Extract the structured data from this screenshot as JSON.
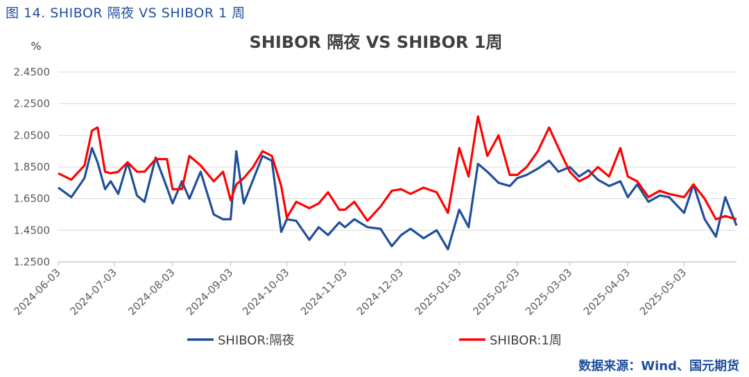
{
  "figure_caption": "图 14. SHIBOR 隔夜 VS SHIBOR 1 周",
  "source_note": "数据来源：Wind、国元期货",
  "colors": {
    "overnight": "#1f4e9c",
    "week": "#ff0000",
    "axis": "#bfbfbf",
    "caption": "#1f4e9c"
  },
  "chart_data": {
    "type": "line",
    "title": "SHIBOR 隔夜 VS SHIBOR 1周",
    "ylabel": "%",
    "xlabel": "",
    "ylim": [
      1.25,
      2.45
    ],
    "yticks": [
      "2.4500",
      "2.2500",
      "2.0500",
      "1.8500",
      "1.6500",
      "1.4500",
      "1.2500"
    ],
    "ytick_values": [
      2.45,
      2.25,
      2.05,
      1.85,
      1.65,
      1.45,
      1.25
    ],
    "xlim": [
      "2024-06-03",
      "2025-05-31"
    ],
    "xticks": [
      "2024-06-03",
      "2024-07-03",
      "2024-08-03",
      "2024-09-03",
      "2024-10-03",
      "2024-11-03",
      "2024-12-03",
      "2025-01-03",
      "2025-02-03",
      "2025-03-03",
      "2025-04-03",
      "2025-05-03"
    ],
    "legend_position": "bottom",
    "grid": "horizontal",
    "series": [
      {
        "name": "SHIBOR:隔夜",
        "color": "#1f4e9c",
        "x": [
          "2024-06-03",
          "2024-06-10",
          "2024-06-17",
          "2024-06-21",
          "2024-06-24",
          "2024-06-28",
          "2024-07-01",
          "2024-07-05",
          "2024-07-10",
          "2024-07-15",
          "2024-07-19",
          "2024-07-25",
          "2024-07-31",
          "2024-08-03",
          "2024-08-08",
          "2024-08-12",
          "2024-08-18",
          "2024-08-25",
          "2024-08-30",
          "2024-09-03",
          "2024-09-06",
          "2024-09-10",
          "2024-09-15",
          "2024-09-20",
          "2024-09-25",
          "2024-09-30",
          "2024-10-03",
          "2024-10-08",
          "2024-10-15",
          "2024-10-20",
          "2024-10-25",
          "2024-10-31",
          "2024-11-03",
          "2024-11-08",
          "2024-11-15",
          "2024-11-22",
          "2024-11-28",
          "2024-12-03",
          "2024-12-08",
          "2024-12-15",
          "2024-12-22",
          "2024-12-28",
          "2025-01-03",
          "2025-01-08",
          "2025-01-13",
          "2025-01-18",
          "2025-01-24",
          "2025-01-30",
          "2025-02-03",
          "2025-02-08",
          "2025-02-14",
          "2025-02-20",
          "2025-02-25",
          "2025-03-03",
          "2025-03-08",
          "2025-03-13",
          "2025-03-18",
          "2025-03-24",
          "2025-03-30",
          "2025-04-03",
          "2025-04-08",
          "2025-04-14",
          "2025-04-20",
          "2025-04-25",
          "2025-05-03",
          "2025-05-08",
          "2025-05-14",
          "2025-05-20",
          "2025-05-25",
          "2025-05-31"
        ],
        "values": [
          1.72,
          1.66,
          1.78,
          1.97,
          1.88,
          1.71,
          1.76,
          1.68,
          1.88,
          1.67,
          1.63,
          1.91,
          1.72,
          1.62,
          1.76,
          1.65,
          1.82,
          1.55,
          1.52,
          1.52,
          1.95,
          1.62,
          1.77,
          1.92,
          1.89,
          1.44,
          1.52,
          1.51,
          1.39,
          1.47,
          1.42,
          1.5,
          1.47,
          1.52,
          1.47,
          1.46,
          1.35,
          1.42,
          1.46,
          1.4,
          1.45,
          1.33,
          1.58,
          1.47,
          1.87,
          1.82,
          1.75,
          1.73,
          1.78,
          1.8,
          1.84,
          1.89,
          1.82,
          1.85,
          1.79,
          1.83,
          1.77,
          1.73,
          1.76,
          1.66,
          1.74,
          1.63,
          1.67,
          1.66,
          1.56,
          1.74,
          1.52,
          1.41,
          1.66,
          1.48
        ]
      },
      {
        "name": "SHIBOR:1周",
        "color": "#ff0000",
        "x": [
          "2024-06-03",
          "2024-06-10",
          "2024-06-17",
          "2024-06-21",
          "2024-06-24",
          "2024-06-28",
          "2024-07-01",
          "2024-07-05",
          "2024-07-10",
          "2024-07-15",
          "2024-07-19",
          "2024-07-25",
          "2024-07-31",
          "2024-08-03",
          "2024-08-08",
          "2024-08-12",
          "2024-08-18",
          "2024-08-25",
          "2024-08-30",
          "2024-09-03",
          "2024-09-06",
          "2024-09-10",
          "2024-09-15",
          "2024-09-20",
          "2024-09-25",
          "2024-09-30",
          "2024-10-03",
          "2024-10-08",
          "2024-10-15",
          "2024-10-20",
          "2024-10-25",
          "2024-10-31",
          "2024-11-03",
          "2024-11-08",
          "2024-11-15",
          "2024-11-22",
          "2024-11-28",
          "2024-12-03",
          "2024-12-08",
          "2024-12-15",
          "2024-12-22",
          "2024-12-28",
          "2025-01-03",
          "2025-01-08",
          "2025-01-13",
          "2025-01-18",
          "2025-01-24",
          "2025-01-30",
          "2025-02-03",
          "2025-02-08",
          "2025-02-14",
          "2025-02-20",
          "2025-02-25",
          "2025-03-03",
          "2025-03-08",
          "2025-03-13",
          "2025-03-18",
          "2025-03-24",
          "2025-03-30",
          "2025-04-03",
          "2025-04-08",
          "2025-04-14",
          "2025-04-20",
          "2025-04-25",
          "2025-05-03",
          "2025-05-08",
          "2025-05-14",
          "2025-05-20",
          "2025-05-25",
          "2025-05-31"
        ],
        "values": [
          1.81,
          1.77,
          1.86,
          2.08,
          2.1,
          1.82,
          1.81,
          1.82,
          1.88,
          1.82,
          1.82,
          1.9,
          1.9,
          1.71,
          1.71,
          1.92,
          1.86,
          1.76,
          1.82,
          1.64,
          1.74,
          1.78,
          1.85,
          1.95,
          1.92,
          1.73,
          1.53,
          1.63,
          1.59,
          1.62,
          1.69,
          1.58,
          1.58,
          1.63,
          1.51,
          1.6,
          1.7,
          1.71,
          1.68,
          1.72,
          1.69,
          1.56,
          1.97,
          1.79,
          2.17,
          1.92,
          2.05,
          1.8,
          1.8,
          1.85,
          1.95,
          2.1,
          1.97,
          1.82,
          1.76,
          1.79,
          1.85,
          1.79,
          1.97,
          1.79,
          1.76,
          1.66,
          1.7,
          1.68,
          1.66,
          1.74,
          1.65,
          1.52,
          1.54,
          1.52
        ]
      }
    ]
  }
}
